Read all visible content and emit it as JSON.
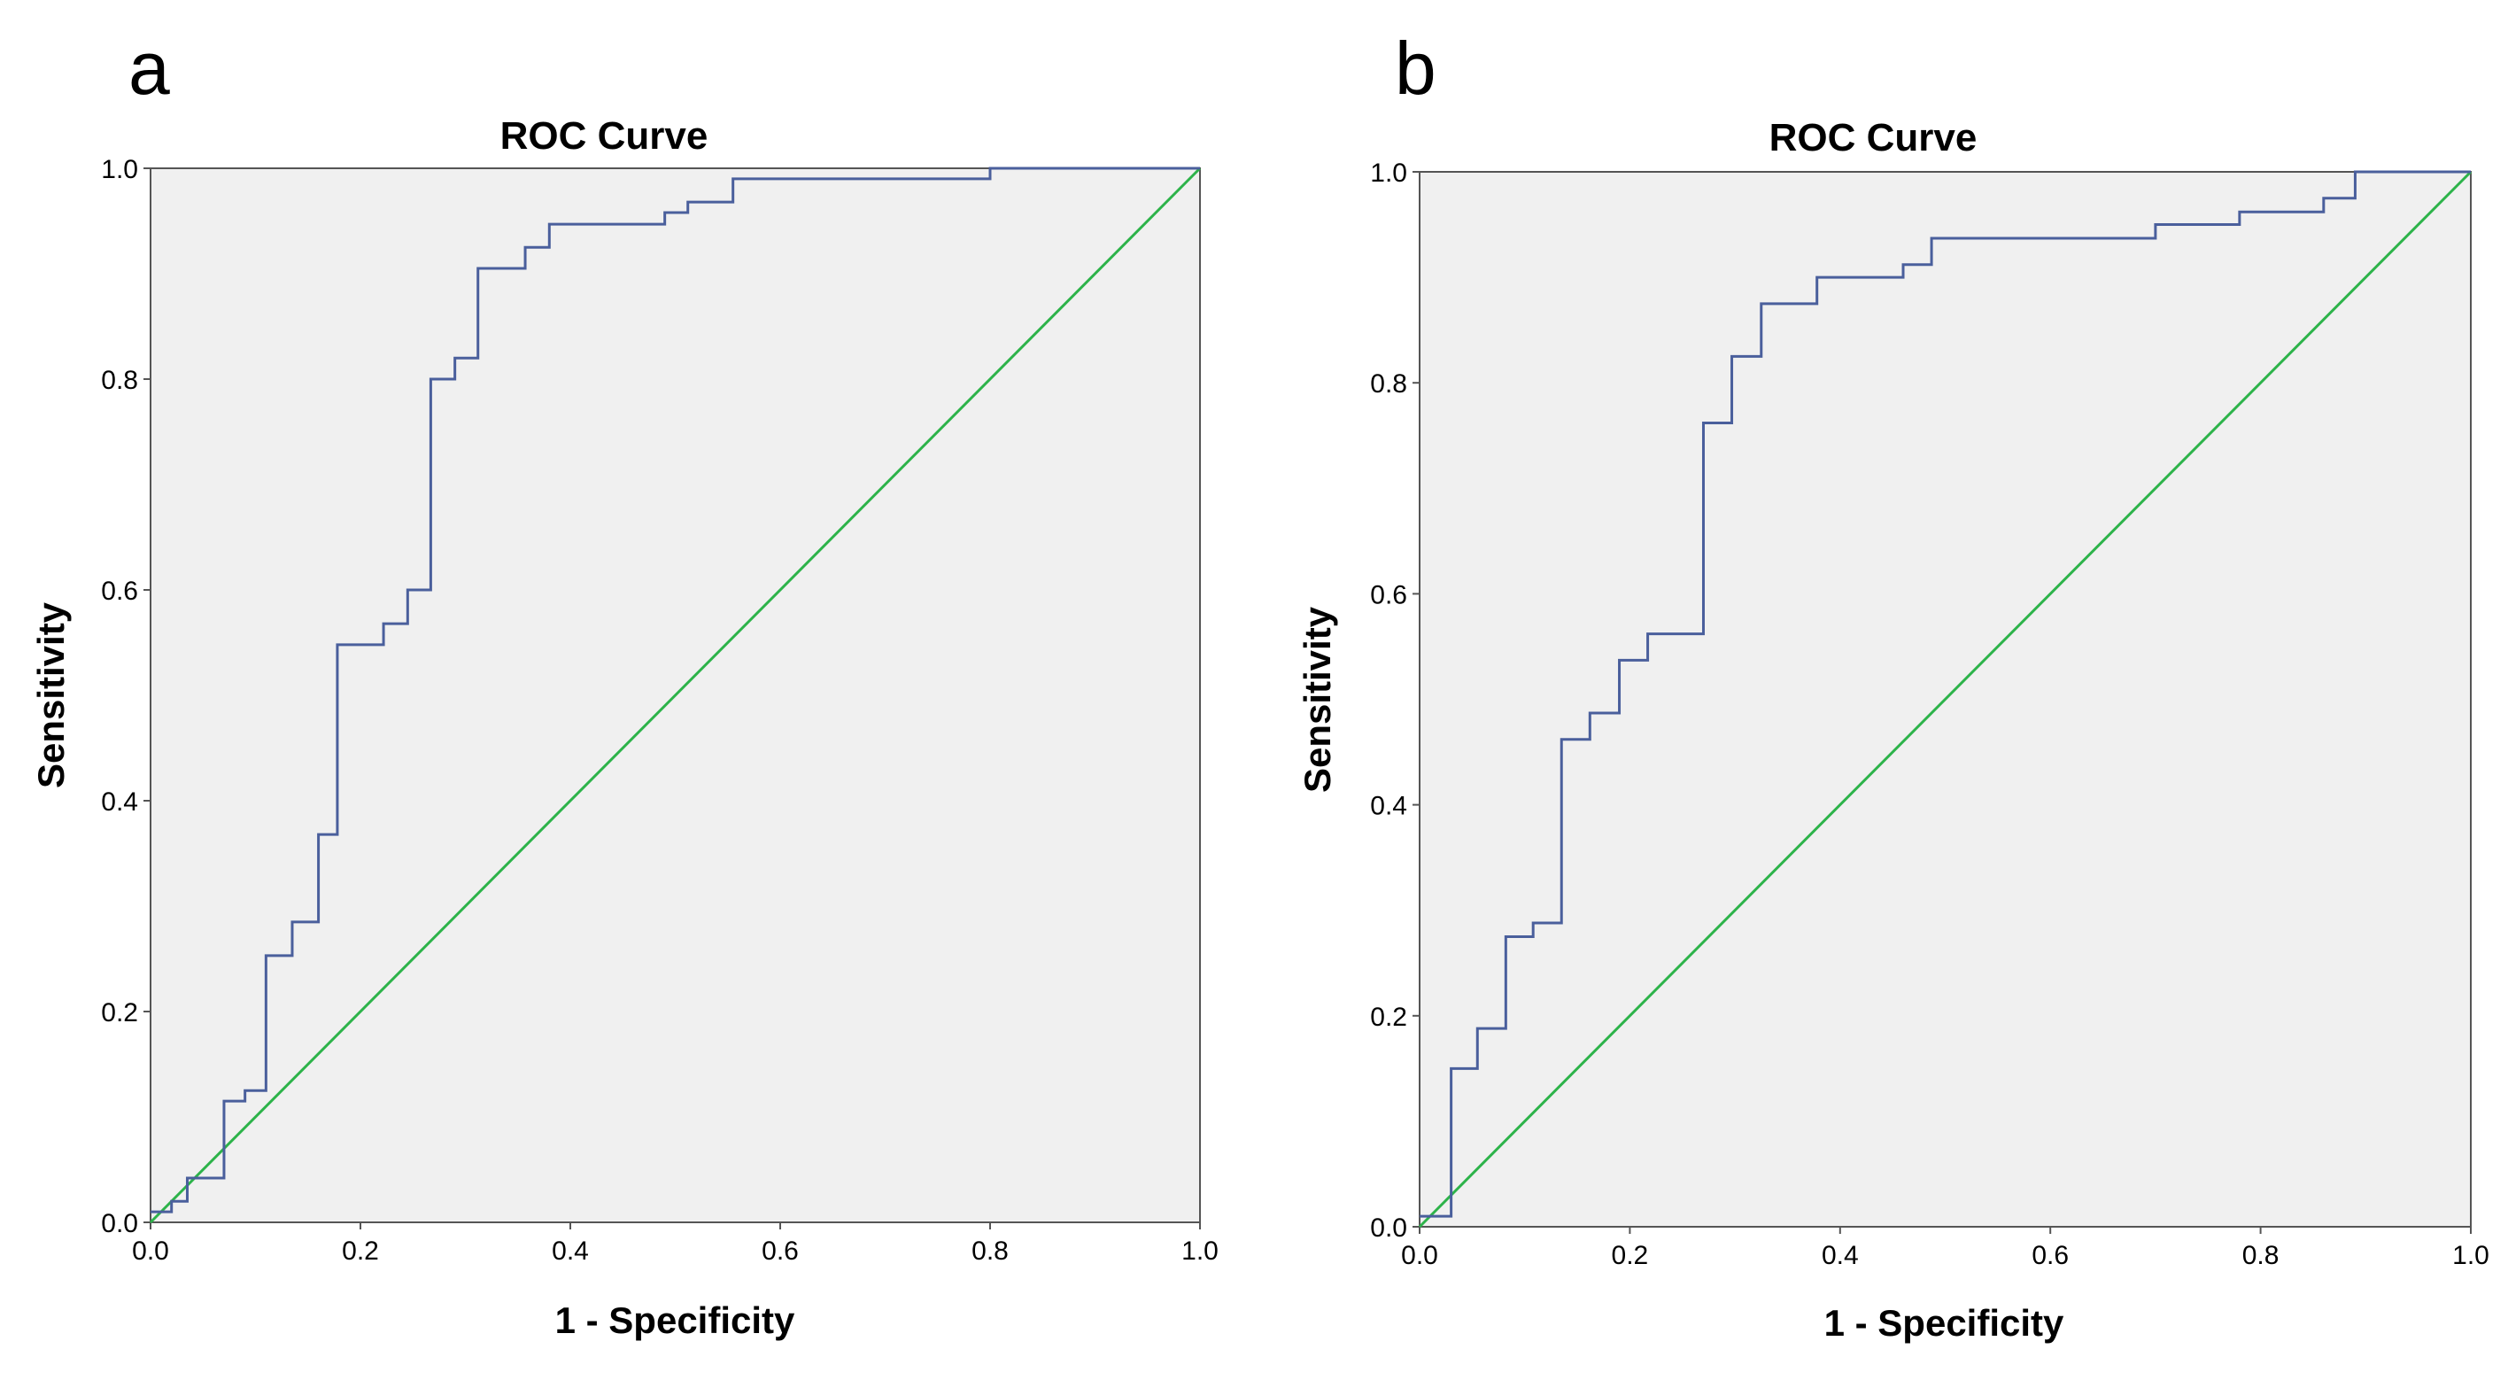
{
  "panels": [
    {
      "letter": "a"
    },
    {
      "letter": "b"
    }
  ],
  "chart_data": [
    {
      "type": "line",
      "title": "ROC Curve",
      "xlabel": "1 - Specificity",
      "ylabel": "Sensitivity",
      "xlim": [
        0,
        1
      ],
      "ylim": [
        0,
        1
      ],
      "xticks": [
        "0.0",
        "0.2",
        "0.4",
        "0.6",
        "0.8",
        "1.0"
      ],
      "yticks": [
        "0.0",
        "0.2",
        "0.4",
        "0.6",
        "0.8",
        "1.0"
      ],
      "background": "#f0f0f0",
      "series": [
        {
          "name": "ROC",
          "color": "#4a5f9c",
          "step": true,
          "x": [
            0,
            0.02,
            0.035,
            0.07,
            0.09,
            0.11,
            0.135,
            0.16,
            0.178,
            0.222,
            0.245,
            0.267,
            0.29,
            0.312,
            0.357,
            0.38,
            0.49,
            0.512,
            0.555,
            0.8,
            1.0
          ],
          "y": [
            0.01,
            0.02,
            0.042,
            0.115,
            0.125,
            0.253,
            0.285,
            0.368,
            0.548,
            0.568,
            0.6,
            0.8,
            0.82,
            0.905,
            0.925,
            0.947,
            0.958,
            0.968,
            0.99,
            1.0,
            1.0
          ]
        },
        {
          "name": "Reference Line",
          "color": "#2db34a",
          "step": false,
          "x": [
            0,
            1
          ],
          "y": [
            0,
            1
          ]
        }
      ]
    },
    {
      "type": "line",
      "title": "ROC Curve",
      "xlabel": "1 - Specificity",
      "ylabel": "Sensitivity",
      "xlim": [
        0,
        1
      ],
      "ylim": [
        0,
        1
      ],
      "xticks": [
        "0.0",
        "0.2",
        "0.4",
        "0.6",
        "0.8",
        "1.0"
      ],
      "yticks": [
        "0.0",
        "0.2",
        "0.4",
        "0.6",
        "0.8",
        "1.0"
      ],
      "background": "#f0f0f0",
      "series": [
        {
          "name": "ROC",
          "color": "#4a5f9c",
          "step": true,
          "x": [
            0,
            0.03,
            0.055,
            0.082,
            0.108,
            0.135,
            0.162,
            0.19,
            0.217,
            0.27,
            0.297,
            0.325,
            0.378,
            0.46,
            0.487,
            0.7,
            0.78,
            0.86,
            0.89,
            1.0
          ],
          "y": [
            0.01,
            0.15,
            0.188,
            0.275,
            0.288,
            0.462,
            0.487,
            0.537,
            0.562,
            0.762,
            0.825,
            0.875,
            0.9,
            0.912,
            0.937,
            0.95,
            0.962,
            0.975,
            1.0,
            1.0
          ]
        },
        {
          "name": "Reference Line",
          "color": "#2db34a",
          "step": false,
          "x": [
            0,
            1
          ],
          "y": [
            0,
            1
          ]
        }
      ]
    }
  ]
}
